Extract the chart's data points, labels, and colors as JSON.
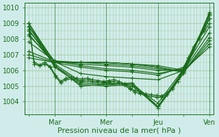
{
  "bg_color": "#d0ecea",
  "grid_color": "#a8cca8",
  "line_color": "#1a6b1a",
  "xlabel": "Pression niveau de la mer( hPa )",
  "xtick_labels": [
    "",
    "Mar",
    "",
    "Mer",
    "",
    "Jeu",
    "",
    "Ven"
  ],
  "xtick_positions": [
    0,
    1,
    2,
    3,
    4,
    5,
    6,
    7
  ],
  "ylim": [
    1003.2,
    1010.3
  ],
  "yticks": [
    1004,
    1005,
    1006,
    1007,
    1008,
    1009,
    1010
  ],
  "series": [
    [
      1008.8,
      1006.55,
      1005.8,
      1005.6,
      1005.5,
      1005.4,
      1006.0,
      1009.6
    ],
    [
      1009.0,
      1006.5,
      1006.2,
      1006.0,
      1005.9,
      1005.7,
      1006.2,
      1009.3
    ],
    [
      1008.5,
      1006.6,
      1006.3,
      1006.1,
      1006.0,
      1005.8,
      1006.1,
      1008.8
    ],
    [
      1008.2,
      1006.6,
      1006.4,
      1006.3,
      1006.2,
      1006.0,
      1006.0,
      1008.4
    ],
    [
      1007.8,
      1006.6,
      1006.5,
      1006.4,
      1006.3,
      1006.1,
      1005.9,
      1008.1
    ],
    [
      1007.2,
      1006.55,
      1006.5,
      1006.5,
      1006.4,
      1006.2,
      1005.9,
      1007.9
    ],
    [
      1007.0,
      1006.5,
      1006.5,
      1006.5,
      1006.4,
      1006.2,
      1005.9,
      1007.7
    ],
    [
      1006.8,
      1006.5,
      1006.5,
      1006.5,
      1006.4,
      1006.3,
      1006.0,
      1007.5
    ],
    [
      1008.8,
      1006.3,
      1005.0,
      1005.1,
      1005.2,
      1003.7,
      1005.8,
      1009.6
    ],
    [
      1009.0,
      1006.2,
      1005.1,
      1005.0,
      1005.1,
      1003.6,
      1005.9,
      1009.7
    ],
    [
      1008.6,
      1006.3,
      1005.2,
      1005.1,
      1005.0,
      1003.7,
      1006.0,
      1009.5
    ],
    [
      1008.3,
      1006.4,
      1005.3,
      1005.2,
      1005.1,
      1003.9,
      1006.1,
      1009.3
    ]
  ],
  "detailed_series": [
    [
      1008.8,
      1006.5,
      1006.35,
      1006.5,
      1006.25,
      1005.7,
      1005.3,
      1005.5,
      1005.55,
      1005.5,
      1005.45,
      1005.5,
      1005.4,
      1005.35,
      1005.3,
      1005.35,
      1005.4,
      1005.3,
      1005.15,
      1004.9,
      1004.7,
      1004.6,
      1004.5,
      1004.45,
      1004.4,
      1004.38,
      1004.55,
      1004.9,
      1005.4,
      1006.1,
      1006.8,
      1007.5,
      1008.1,
      1008.6,
      1009.3
    ],
    [
      1009.0,
      1006.4,
      1006.3,
      1006.4,
      1006.2,
      1005.6,
      1005.2,
      1005.4,
      1005.45,
      1005.4,
      1005.35,
      1005.4,
      1005.3,
      1005.25,
      1005.2,
      1005.25,
      1005.3,
      1005.2,
      1005.05,
      1004.8,
      1004.6,
      1004.5,
      1004.4,
      1004.35,
      1004.3,
      1004.28,
      1004.45,
      1004.8,
      1005.3,
      1006.0,
      1006.7,
      1007.4,
      1008.0,
      1008.5,
      1009.0
    ]
  ],
  "marker": "+",
  "markersize": 4,
  "linewidth": 0.9,
  "vline_positions": [
    1,
    3,
    5,
    7
  ],
  "vline_color": "#2d7a2d",
  "xlabel_fontsize": 8,
  "tick_fontsize": 7
}
